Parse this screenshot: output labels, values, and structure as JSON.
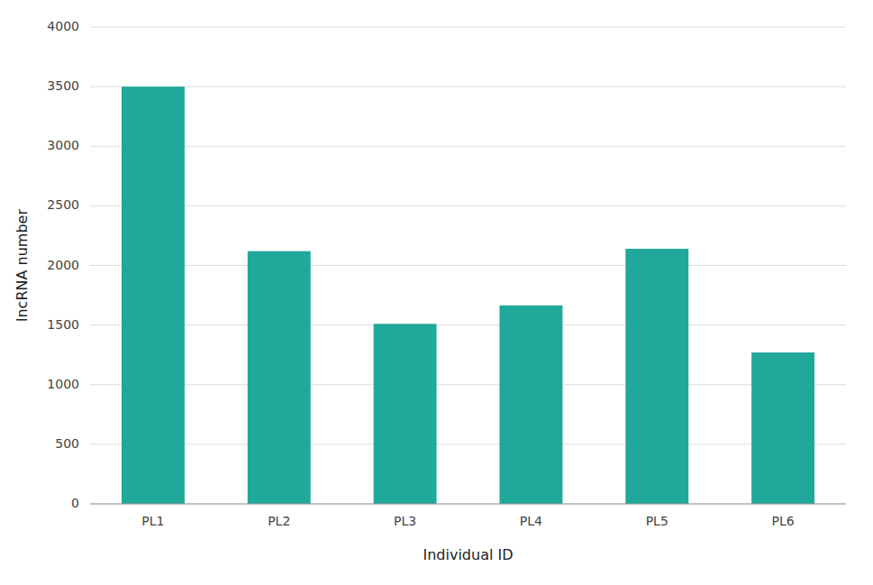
{
  "chart_data": {
    "type": "bar",
    "categories": [
      "PL1",
      "PL2",
      "PL3",
      "PL4",
      "PL5",
      "PL6"
    ],
    "values": [
      3500,
      2120,
      1510,
      1665,
      2140,
      1270
    ],
    "color": "#20a89a",
    "xlabel": "Individual ID",
    "ylabel": "lncRNA number",
    "ylim": [
      0,
      4000
    ],
    "yticks": [
      0,
      500,
      1000,
      1500,
      2000,
      2500,
      3000,
      3500,
      4000
    ],
    "grid": true
  }
}
